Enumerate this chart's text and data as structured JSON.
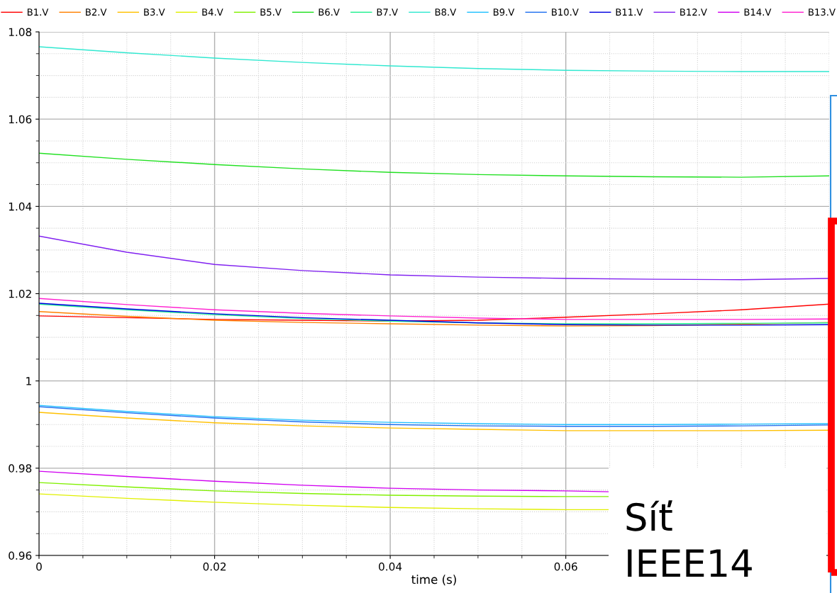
{
  "chart_data": {
    "type": "line",
    "xlabel": "time (s)",
    "x": [
      0,
      0.01,
      0.02,
      0.03,
      0.04,
      0.05,
      0.06,
      0.07,
      0.08,
      0.09
    ],
    "xlim": [
      0,
      0.09
    ],
    "xticks": [
      0,
      0.02,
      0.04,
      0.06
    ],
    "ylim": [
      0.96,
      1.08
    ],
    "yticks": [
      0.96,
      0.98,
      1,
      1.02,
      1.04,
      1.06,
      1.08
    ],
    "grid": true,
    "legend": "top",
    "marker": "none",
    "line_style": "solid",
    "annotations": [
      "Síť\nIEEE14"
    ],
    "series": [
      {
        "name": "B1.V",
        "color": "#ff0000",
        "values": [
          1.0149,
          1.0145,
          1.0141,
          1.0139,
          1.0137,
          1.0139,
          1.0146,
          1.0154,
          1.0163,
          1.0176
        ]
      },
      {
        "name": "B2.V",
        "color": "#ff8000",
        "values": [
          1.0159,
          1.0148,
          1.0139,
          1.0134,
          1.0131,
          1.0128,
          1.0126,
          1.0127,
          1.013,
          1.0134
        ]
      },
      {
        "name": "B3.V",
        "color": "#ffc000",
        "values": [
          0.9928,
          0.9915,
          0.9904,
          0.9897,
          0.9892,
          0.9889,
          0.9886,
          0.9886,
          0.9886,
          0.9887
        ]
      },
      {
        "name": "B4.V",
        "color": "#e0f000",
        "x": [
          0,
          0.01,
          0.02,
          0.03,
          0.04,
          0.05,
          0.06,
          0.065
        ],
        "values": [
          0.9741,
          0.9731,
          0.9722,
          0.9715,
          0.971,
          0.9707,
          0.9705,
          0.9705
        ]
      },
      {
        "name": "B5.V",
        "color": "#80f000",
        "x": [
          0,
          0.01,
          0.02,
          0.03,
          0.04,
          0.05,
          0.06,
          0.065
        ],
        "values": [
          0.9767,
          0.9757,
          0.9748,
          0.9742,
          0.9738,
          0.9736,
          0.9735,
          0.9735
        ]
      },
      {
        "name": "B6.V",
        "color": "#20e020",
        "values": [
          1.0522,
          1.0508,
          1.0496,
          1.0486,
          1.0478,
          1.0473,
          1.047,
          1.0468,
          1.0467,
          1.047
        ]
      },
      {
        "name": "B7.V",
        "color": "#20f090",
        "values": [
          1.0176,
          1.0163,
          1.0152,
          1.0143,
          1.0137,
          1.0133,
          1.0131,
          1.0131,
          1.0132,
          1.0133
        ]
      },
      {
        "name": "B8.V",
        "color": "#30e8d0",
        "values": [
          1.0766,
          1.0752,
          1.074,
          1.073,
          1.0722,
          1.0716,
          1.0712,
          1.071,
          1.0709,
          1.0709
        ]
      },
      {
        "name": "B9.V",
        "color": "#20c0ff",
        "values": [
          0.9944,
          0.993,
          0.9918,
          0.991,
          0.9905,
          0.9902,
          0.99,
          0.99,
          0.9901,
          0.9902
        ]
      },
      {
        "name": "B10.V",
        "color": "#2070f0",
        "values": [
          0.9941,
          0.9927,
          0.9915,
          0.9906,
          0.99,
          0.9897,
          0.9896,
          0.9896,
          0.9897,
          0.9899
        ]
      },
      {
        "name": "B11.V",
        "color": "#0000e0",
        "values": [
          1.0178,
          1.0165,
          1.0154,
          1.0145,
          1.0139,
          1.0133,
          1.0129,
          1.0128,
          1.0128,
          1.0129
        ]
      },
      {
        "name": "B12.V",
        "color": "#8020f0",
        "values": [
          1.0332,
          1.0295,
          1.0267,
          1.0253,
          1.0243,
          1.0238,
          1.0235,
          1.0233,
          1.0232,
          1.0235
        ]
      },
      {
        "name": "B14.V",
        "color": "#d000f0",
        "x": [
          0,
          0.01,
          0.02,
          0.03,
          0.04,
          0.05,
          0.06,
          0.065
        ],
        "values": [
          0.9793,
          0.9781,
          0.977,
          0.9761,
          0.9754,
          0.975,
          0.9748,
          0.9746
        ]
      },
      {
        "name": "B13.V",
        "color": "#ff20d0",
        "values": [
          1.0189,
          1.0175,
          1.0163,
          1.0155,
          1.0149,
          1.0144,
          1.0141,
          1.0141,
          1.0141,
          1.0142
        ]
      }
    ]
  }
}
